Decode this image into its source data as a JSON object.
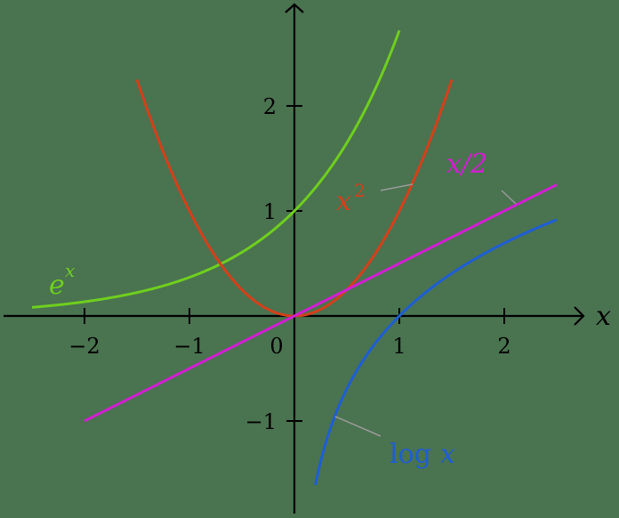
{
  "chart_data": {
    "type": "line",
    "title": "",
    "xlabel": "x",
    "ylabel": "",
    "xlim": [
      -2.6,
      2.6
    ],
    "ylim": [
      -1.85,
      2.9
    ],
    "grid": false,
    "legend": "inline labels",
    "x_ticks": [
      -2,
      -1,
      0,
      1,
      2
    ],
    "x_tick_labels": [
      "−2",
      "−1",
      "0",
      "1",
      "2"
    ],
    "y_ticks": [
      -1,
      1,
      2
    ],
    "y_tick_labels": [
      "−1",
      "1",
      "2"
    ],
    "series": [
      {
        "name": "e^x",
        "label": "e",
        "label_sup": "x",
        "color": "#6fcf1e",
        "domain": [
          -2.5,
          1.0
        ],
        "function": "exp"
      },
      {
        "name": "x^2",
        "label": "x",
        "label_sup": "2",
        "color": "#d4401a",
        "domain": [
          -1.5,
          1.5
        ],
        "function": "square"
      },
      {
        "name": "x/2",
        "label": "x/2",
        "color": "#d21ed2",
        "domain": [
          -2.0,
          2.5
        ],
        "function": "half"
      },
      {
        "name": "log x",
        "label_fn": "log",
        "label_var": "x",
        "color": "#1e5ed4",
        "domain": [
          0.2,
          2.5
        ],
        "function": "log"
      }
    ]
  },
  "colors": {
    "background": "#4a7350",
    "axis": "#000000",
    "pin": "#9a9a9a"
  }
}
